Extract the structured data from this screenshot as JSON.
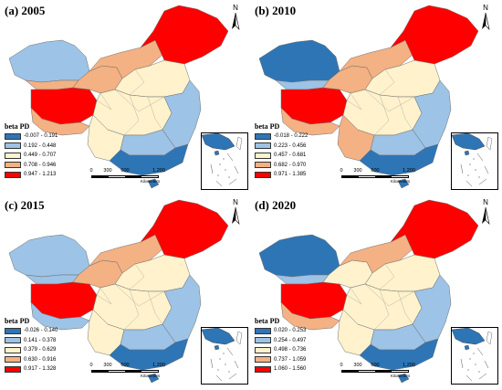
{
  "legend_title": "beta PD",
  "scale": {
    "ticks": [
      "0",
      "300",
      "600",
      "1,200"
    ],
    "unit": "Kilometers"
  },
  "north_label": "N",
  "colors": {
    "class1": "#2E75B6",
    "class2": "#9DC3E6",
    "class3": "#FFF2CC",
    "class4": "#F4B183",
    "class5": "#FF0000",
    "outline": "#6f6f6f"
  },
  "panels": [
    {
      "title": "(a) 2005",
      "legend": [
        "-0.007 - 0.191",
        "0.192 - 0.448",
        "0.449 - 0.707",
        "0.708 - 0.946",
        "0.947 - 1.213"
      ],
      "regions": {
        "northeast": 5,
        "inner_mongolia": 4,
        "xinjiang": 2,
        "tibet_north": 4,
        "qinghai_tibet": 5,
        "tibet_south": 4,
        "northwest": 4,
        "north_china": 3,
        "central": 3,
        "east_coast": 2,
        "southwest": 3,
        "south": 2,
        "south_coast": 1,
        "hainan": 1
      }
    },
    {
      "title": "(b) 2010",
      "legend": [
        "-0.018 - 0.222",
        "0.223 - 0.456",
        "0.457 - 0.681",
        "0.682 - 0.970",
        "0.971 - 1.385"
      ],
      "regions": {
        "northeast": 5,
        "inner_mongolia": 4,
        "xinjiang": 1,
        "tibet_north": 2,
        "qinghai_tibet": 5,
        "tibet_south": 4,
        "northwest": 4,
        "north_china": 3,
        "central": 3,
        "east_coast": 2,
        "southwest": 4,
        "south": 2,
        "south_coast": 1,
        "hainan": 1
      }
    },
    {
      "title": "(c) 2015",
      "legend": [
        "-0.026 - 0.140",
        "0.141 - 0.378",
        "0.379 - 0.629",
        "0.630 - 0.916",
        "0.917 - 1.328"
      ],
      "regions": {
        "northeast": 5,
        "inner_mongolia": 4,
        "xinjiang": 2,
        "tibet_north": 2,
        "qinghai_tibet": 5,
        "tibet_south": 2,
        "northwest": 4,
        "north_china": 3,
        "central": 3,
        "east_coast": 2,
        "southwest": 3,
        "south": 2,
        "south_coast": 1,
        "hainan": 1
      }
    },
    {
      "title": "(d) 2020",
      "legend": [
        "0.020 - 0.253",
        "0.254 - 0.497",
        "0.498 - 0.736",
        "0.737 - 1.059",
        "1.060 - 1.560"
      ],
      "regions": {
        "northeast": 5,
        "inner_mongolia": 4,
        "xinjiang": 1,
        "tibet_north": 2,
        "qinghai_tibet": 5,
        "tibet_south": 4,
        "northwest": 3,
        "north_china": 3,
        "central": 3,
        "east_coast": 2,
        "southwest": 3,
        "south": 2,
        "south_coast": 1,
        "hainan": 1
      }
    }
  ]
}
